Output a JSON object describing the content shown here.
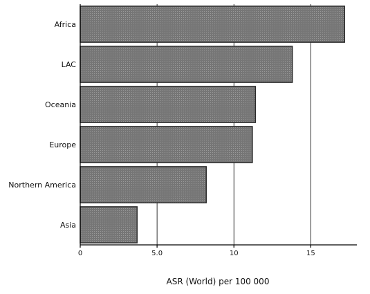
{
  "chart_data": {
    "type": "bar",
    "orientation": "horizontal",
    "categories": [
      "Africa",
      "LAC",
      "Oceania",
      "Europe",
      "Northern America",
      "Asia"
    ],
    "values": [
      17.2,
      13.8,
      11.4,
      11.2,
      8.2,
      3.7
    ],
    "title": "",
    "xlabel": "ASR (World) per 100 000",
    "ylabel": "",
    "xlim": [
      0,
      18
    ],
    "xticks": [
      {
        "value": 0,
        "label": "0"
      },
      {
        "value": 5,
        "label": "5.0"
      },
      {
        "value": 10,
        "label": "10"
      },
      {
        "value": 15,
        "label": "15"
      }
    ],
    "grid": "vertical lines at 5, 10, 15",
    "legend": "none",
    "bar_color": "#7a7a7a",
    "bar_edge_color": "#2b2b2b"
  }
}
